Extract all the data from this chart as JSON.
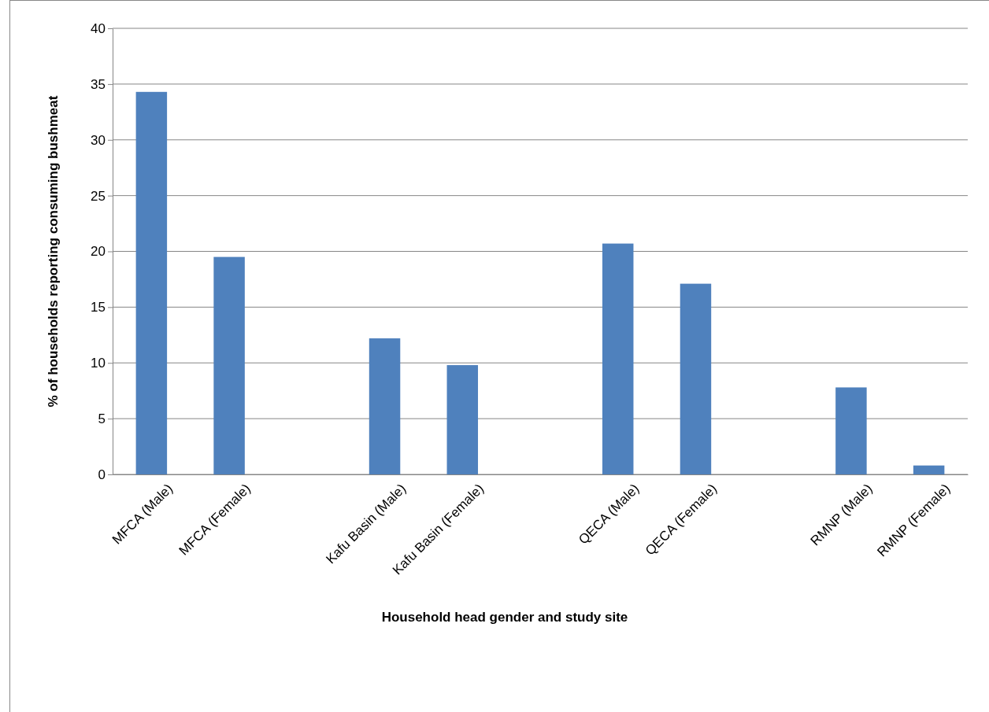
{
  "chart_data": {
    "type": "bar",
    "categories": [
      "MFCA (Male)",
      "MFCA (Female)",
      null,
      "Kafu Basin (Male)",
      "Kafu Basin (Female)",
      null,
      "QECA (Male)",
      "QECA (Female)",
      null,
      "RMNP (Male)",
      "RMNP (Female)"
    ],
    "values": [
      34.3,
      19.5,
      null,
      12.2,
      9.8,
      null,
      20.7,
      17.1,
      null,
      7.8,
      0.8
    ],
    "color": "#4f81bd",
    "xlabel": "Household head gender and study site",
    "ylabel": "% of households reporting consuming bushmeat",
    "ylim": [
      0,
      40
    ],
    "yticks": [
      0,
      5,
      10,
      15,
      20,
      25,
      30,
      35,
      40
    ],
    "grid": "y"
  }
}
